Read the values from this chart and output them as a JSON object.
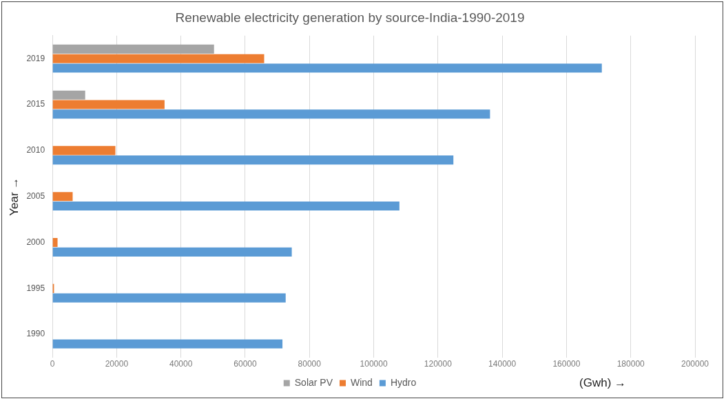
{
  "chart_data": {
    "type": "bar",
    "orientation": "horizontal",
    "title": "Renewable electricity generation by source-India-1990-2019",
    "xlabel": "(Gwh) →",
    "ylabel": "Year →",
    "categories": [
      "2019",
      "2015",
      "2010",
      "2005",
      "2000",
      "1995",
      "1990"
    ],
    "series": [
      {
        "name": "Solar PV",
        "color": "#a5a5a5",
        "values": [
          50300,
          10200,
          null,
          0,
          0,
          0,
          0
        ]
      },
      {
        "name": "Wind",
        "color": "#ed7d31",
        "values": [
          65900,
          34900,
          19600,
          6300,
          1600,
          500,
          null
        ]
      },
      {
        "name": "Hydro",
        "color": "#5b9bd5",
        "values": [
          171000,
          136200,
          124800,
          108000,
          74500,
          72600,
          71600
        ]
      }
    ],
    "xlim": [
      0,
      200000
    ],
    "xticks": [
      0,
      20000,
      40000,
      60000,
      80000,
      100000,
      120000,
      140000,
      160000,
      180000,
      200000
    ],
    "grid": "x",
    "legend": "bottom"
  }
}
